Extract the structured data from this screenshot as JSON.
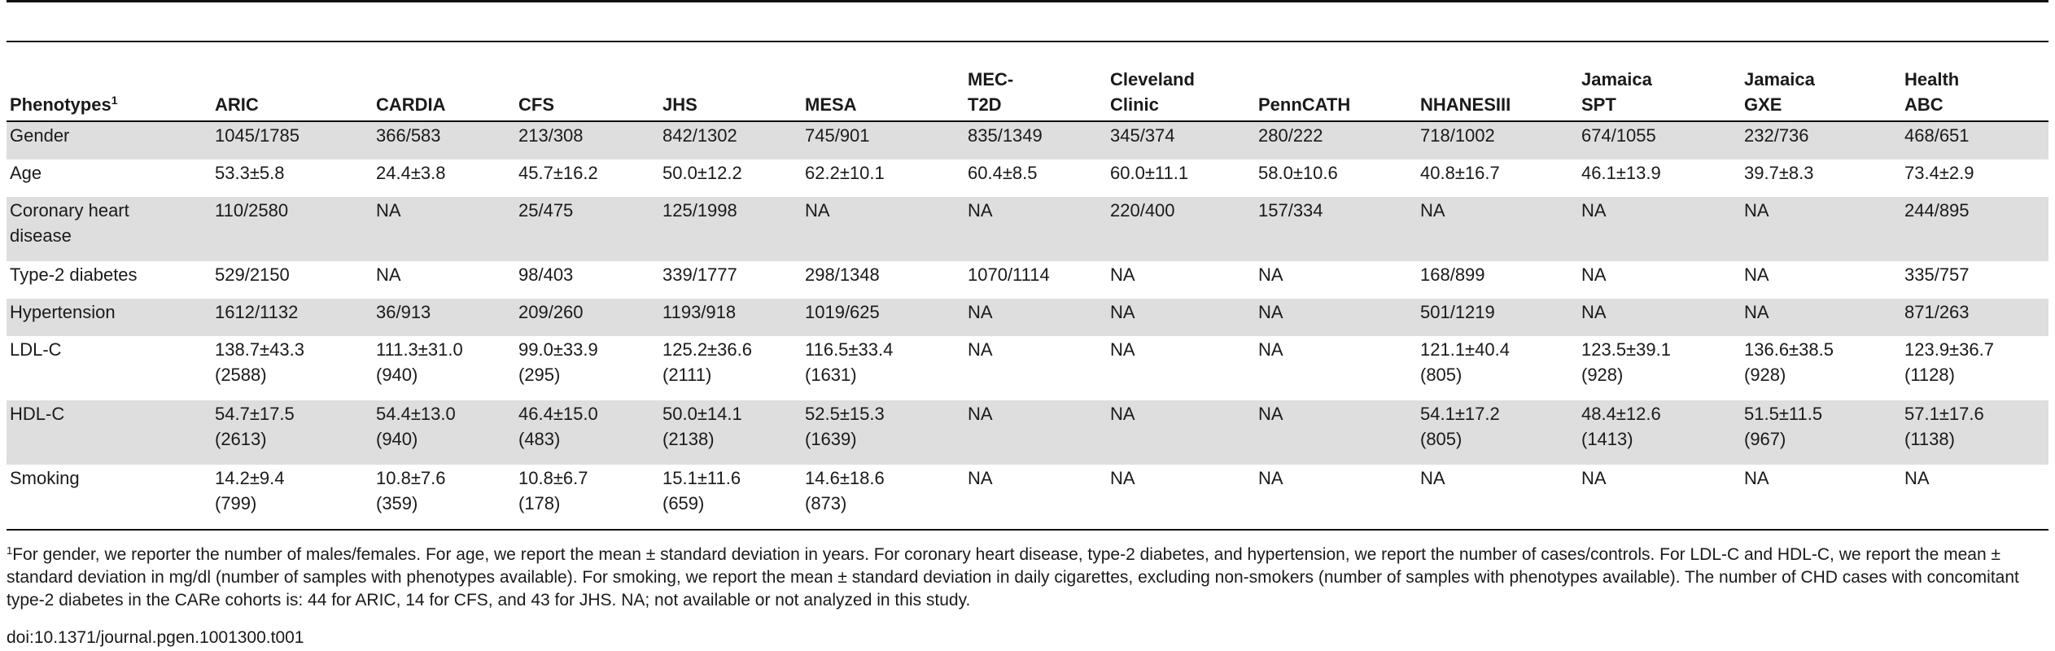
{
  "table": {
    "header": {
      "first_label": "Phenotypes",
      "first_sup": "1",
      "columns": [
        "ARIC",
        "CARDIA",
        "CFS",
        "JHS",
        "MESA",
        "MEC-\nT2D",
        "Cleveland\nClinic",
        "PennCATH",
        "NHANESIII",
        "Jamaica\nSPT",
        "Jamaica\nGXE",
        "Health\nABC"
      ]
    },
    "rows": [
      {
        "label": "Gender",
        "cells": [
          "1045/1785",
          "366/583",
          "213/308",
          "842/1302",
          "745/901",
          "835/1349",
          "345/374",
          "280/222",
          "718/1002",
          "674/1055",
          "232/736",
          "468/651"
        ]
      },
      {
        "label": "Age",
        "cells": [
          "53.3±5.8",
          "24.4±3.8",
          "45.7±16.2",
          "50.0±12.2",
          "62.2±10.1",
          "60.4±8.5",
          "60.0±11.1",
          "58.0±10.6",
          "40.8±16.7",
          "46.1±13.9",
          "39.7±8.3",
          "73.4±2.9"
        ]
      },
      {
        "label": "Coronary heart\ndisease",
        "cells": [
          "110/2580",
          "NA",
          "25/475",
          "125/1998",
          "NA",
          "NA",
          "220/400",
          "157/334",
          "NA",
          "NA",
          "NA",
          "244/895"
        ]
      },
      {
        "label": "Type-2 diabetes",
        "cells": [
          "529/2150",
          "NA",
          "98/403",
          "339/1777",
          "298/1348",
          "1070/1114",
          "NA",
          "NA",
          "168/899",
          "NA",
          "NA",
          "335/757"
        ]
      },
      {
        "label": "Hypertension",
        "cells": [
          "1612/1132",
          "36/913",
          "209/260",
          "1193/918",
          "1019/625",
          "NA",
          "NA",
          "NA",
          "501/1219",
          "NA",
          "NA",
          "871/263"
        ]
      },
      {
        "label": "LDL-C",
        "cells": [
          "138.7±43.3\n(2588)",
          "111.3±31.0\n(940)",
          "99.0±33.9\n(295)",
          "125.2±36.6\n(2111)",
          "116.5±33.4\n(1631)",
          "NA",
          "NA",
          "NA",
          "121.1±40.4\n(805)",
          "123.5±39.1\n(928)",
          "136.6±38.5\n(928)",
          "123.9±36.7\n(1128)"
        ]
      },
      {
        "label": "HDL-C",
        "cells": [
          "54.7±17.5\n(2613)",
          "54.4±13.0\n(940)",
          "46.4±15.0\n(483)",
          "50.0±14.1\n(2138)",
          "52.5±15.3\n(1639)",
          "NA",
          "NA",
          "NA",
          "54.1±17.2\n(805)",
          "48.4±12.6\n(1413)",
          "51.5±11.5\n(967)",
          "57.1±17.6\n(1138)"
        ]
      },
      {
        "label": "Smoking",
        "cells": [
          "14.2±9.4\n(799)",
          "10.8±7.6\n(359)",
          "10.8±6.7\n(178)",
          "15.1±11.6\n(659)",
          "14.6±18.6\n(873)",
          "NA",
          "NA",
          "NA",
          "NA",
          "NA",
          "NA",
          "NA"
        ]
      }
    ]
  },
  "footnote": {
    "sup": "1",
    "text": "For gender, we reporter the number of males/females. For age, we report the mean ± standard deviation in years. For coronary heart disease, type-2 diabetes, and hypertension, we report the number of cases/controls. For LDL-C and HDL-C, we report the mean ± standard deviation in mg/dl (number of samples with phenotypes available). For smoking, we report the mean ± standard deviation in daily cigarettes, excluding non-smokers (number of samples with phenotypes available). The number of CHD cases with concomitant type-2 diabetes in the CARe cohorts is: 44 for ARIC, 14 for CFS, and 43 for JHS. NA; not available or not analyzed in this study."
  },
  "doi": "doi:10.1371/journal.pgen.1001300.t001"
}
